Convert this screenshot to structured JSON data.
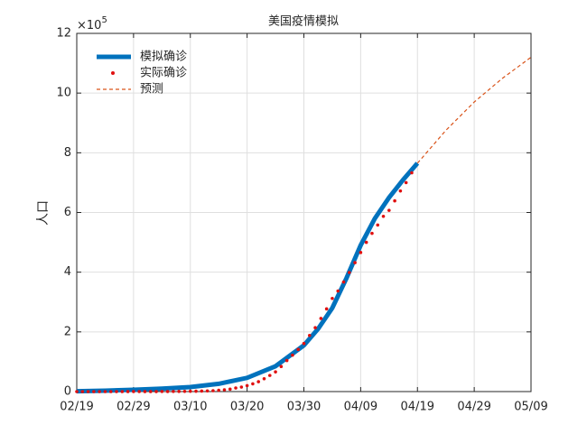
{
  "chart_data": {
    "type": "line",
    "title": "美国疫情模拟",
    "y_label": "人口",
    "y_scale": {
      "base": "×10",
      "exponent": "5"
    },
    "xlim": [
      0,
      80
    ],
    "xticks": [
      {
        "value": 0,
        "label": "02/19"
      },
      {
        "value": 10,
        "label": "02/29"
      },
      {
        "value": 20,
        "label": "03/10"
      },
      {
        "value": 30,
        "label": "03/20"
      },
      {
        "value": 40,
        "label": "03/30"
      },
      {
        "value": 50,
        "label": "04/09"
      },
      {
        "value": 60,
        "label": "04/19"
      },
      {
        "value": 70,
        "label": "04/29"
      },
      {
        "value": 80,
        "label": "05/09"
      }
    ],
    "ylim": [
      0,
      12
    ],
    "yticks": [
      0,
      2,
      4,
      6,
      8,
      10,
      12
    ],
    "grid": true,
    "legend": "upper left",
    "series": [
      {
        "name": "模拟确诊",
        "color": "#0072bd",
        "style": "line",
        "x": [
          0,
          5,
          10,
          15,
          20,
          25,
          30,
          35,
          40,
          42.5,
          45,
          47.5,
          50,
          52.5,
          55,
          57.5,
          60
        ],
        "values": [
          0.01,
          0.03,
          0.06,
          0.1,
          0.15,
          0.26,
          0.46,
          0.85,
          1.55,
          2.1,
          2.8,
          3.8,
          4.9,
          5.8,
          6.5,
          7.1,
          7.65
        ]
      },
      {
        "name": "实际确诊",
        "color": "#e01010",
        "style": "marker",
        "x": [
          0,
          1,
          2,
          3,
          4,
          5,
          6,
          7,
          8,
          9,
          10,
          11,
          12,
          13,
          14,
          15,
          16,
          17,
          18,
          19,
          20,
          21,
          22,
          23,
          24,
          25,
          26,
          27,
          28,
          29,
          30,
          31,
          32,
          33,
          34,
          35,
          36,
          37,
          38,
          39,
          40,
          41,
          42,
          43,
          44,
          45,
          46,
          47,
          48,
          49,
          50,
          51,
          52,
          53,
          54,
          55,
          56,
          57,
          58,
          59
        ],
        "values": [
          0.0002,
          0.0002,
          0.0002,
          0.0002,
          0.0002,
          0.0002,
          0.0002,
          0.0002,
          0.0003,
          0.0005,
          0.0007,
          0.001,
          0.0012,
          0.0015,
          0.0018,
          0.002,
          0.0022,
          0.004,
          0.005,
          0.006,
          0.01,
          0.013,
          0.017,
          0.023,
          0.03,
          0.045,
          0.06,
          0.08,
          0.12,
          0.15,
          0.2,
          0.26,
          0.33,
          0.43,
          0.54,
          0.66,
          0.84,
          1.04,
          1.22,
          1.41,
          1.61,
          1.88,
          2.14,
          2.45,
          2.77,
          3.12,
          3.37,
          3.67,
          3.99,
          4.32,
          4.66,
          5.0,
          5.3,
          5.58,
          5.87,
          6.07,
          6.39,
          6.72,
          7.0,
          7.33
        ]
      },
      {
        "name": "预测",
        "color": "#d95319",
        "style": "dashed",
        "x": [
          60,
          65,
          70,
          75,
          80
        ],
        "values": [
          7.65,
          8.75,
          9.7,
          10.5,
          11.2
        ]
      }
    ]
  }
}
